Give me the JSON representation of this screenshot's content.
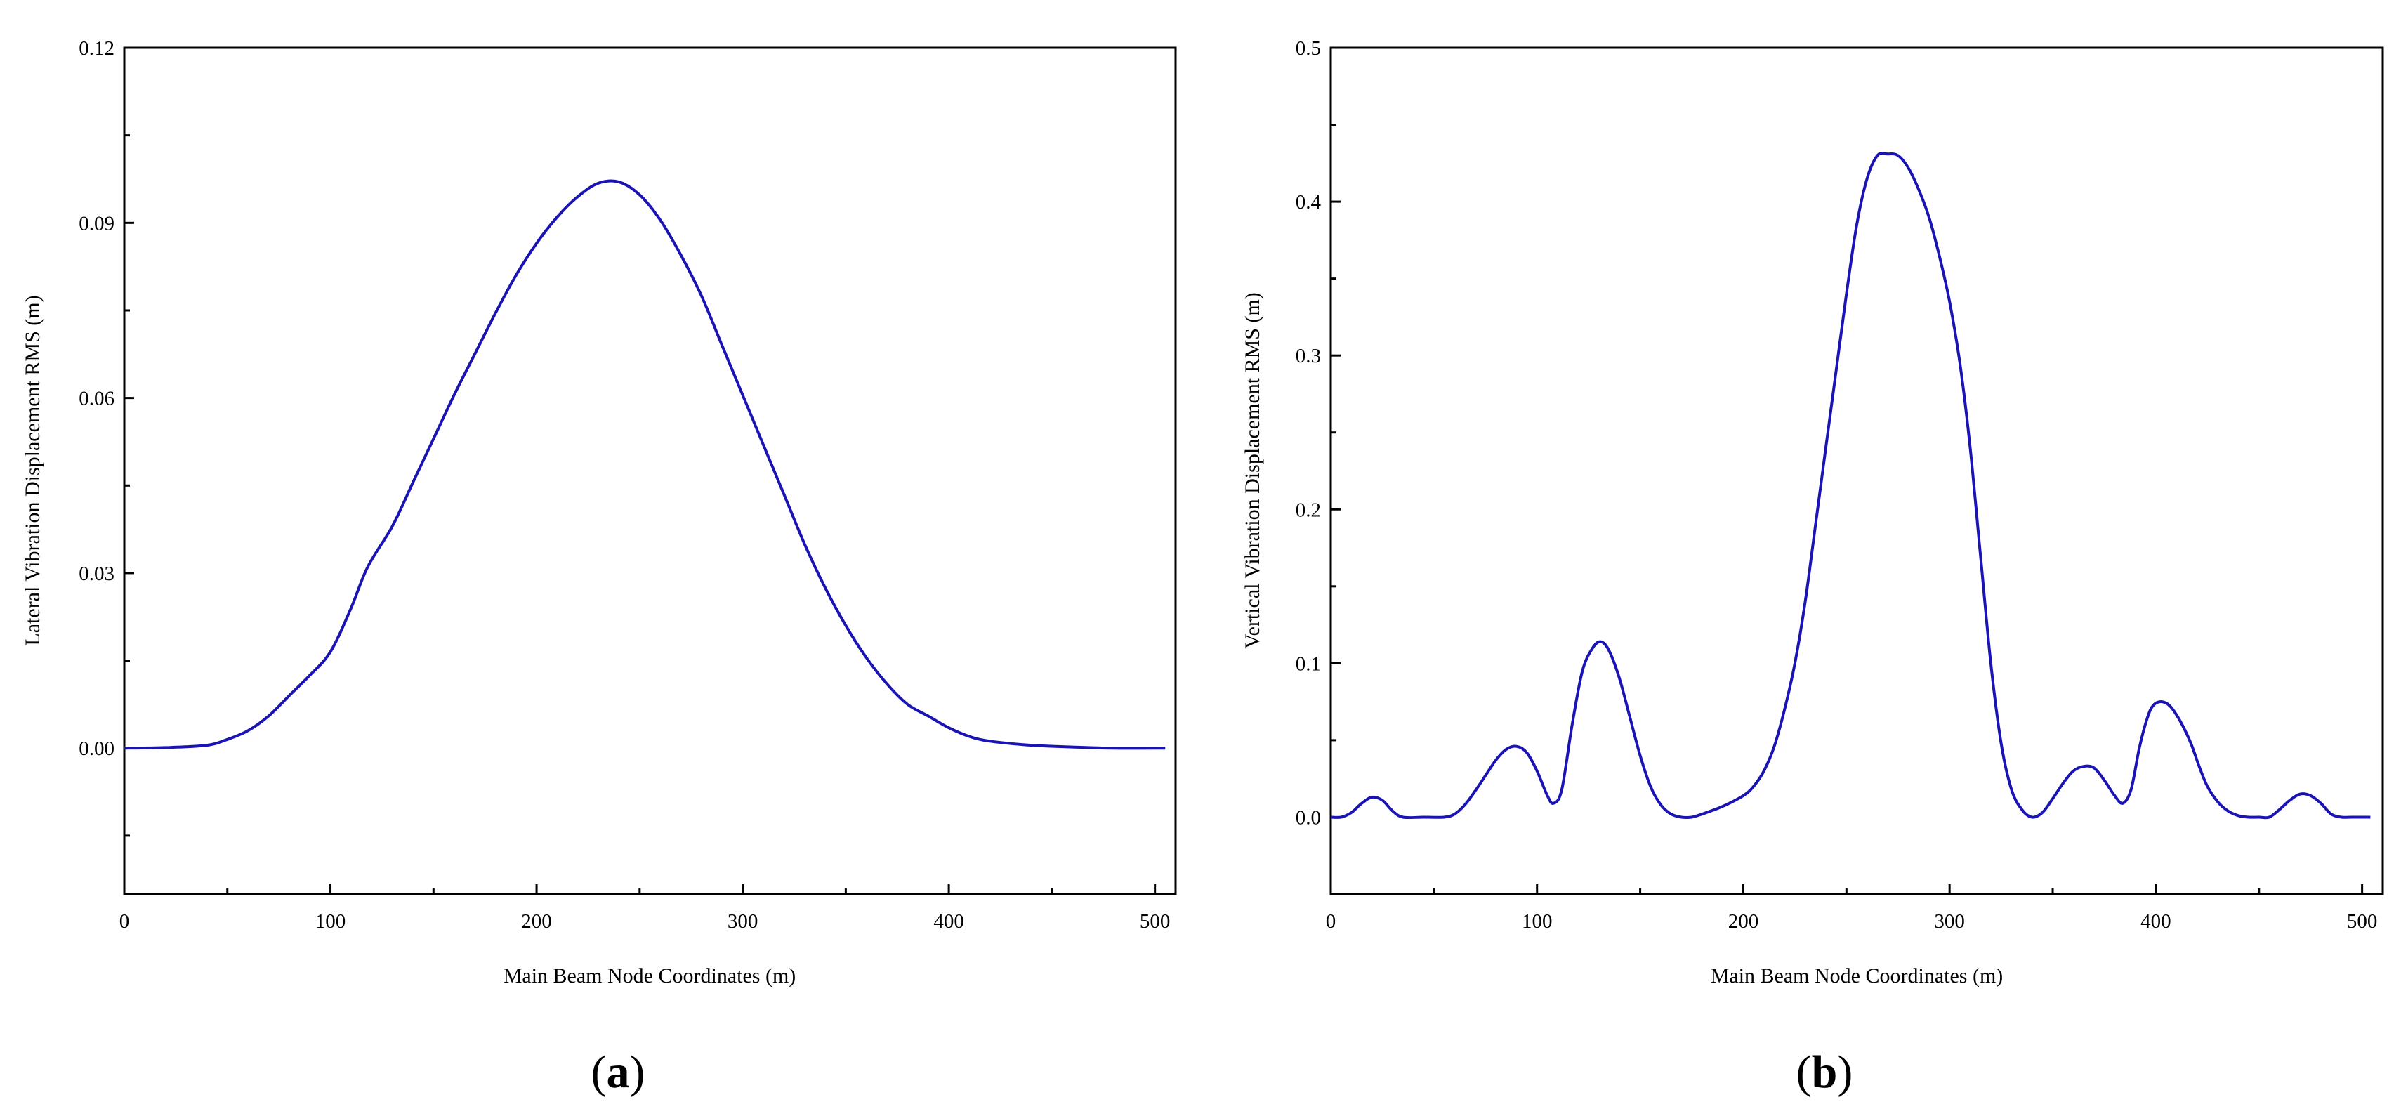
{
  "chart_data": [
    {
      "type": "line",
      "panel_label": {
        "open": "(",
        "letter": "a",
        "close": ")"
      },
      "xlabel": "Main Beam Node Coordinates (m)",
      "ylabel": "Lateral Vibration Displacement RMS (m)",
      "xlim": [
        0,
        510
      ],
      "ylim": [
        -0.025,
        0.12
      ],
      "xticks": [
        0,
        100,
        200,
        300,
        400,
        500
      ],
      "xtick_labels": [
        "0",
        "100",
        "200",
        "300",
        "400",
        "500"
      ],
      "yticks": [
        0.0,
        0.03,
        0.06,
        0.09,
        0.12
      ],
      "ytick_labels": [
        "0.00",
        "0.03",
        "0.06",
        "0.09",
        "0.12"
      ],
      "grid": false,
      "series": [
        {
          "color": "#1a14b4",
          "x": [
            0,
            20,
            40,
            50,
            60,
            70,
            80,
            90,
            100,
            110,
            118,
            130,
            140,
            150,
            160,
            170,
            180,
            190,
            200,
            210,
            220,
            230,
            240,
            250,
            260,
            270,
            280,
            290,
            300,
            310,
            320,
            330,
            340,
            350,
            360,
            370,
            380,
            390,
            400,
            410,
            420,
            440,
            460,
            480,
            505
          ],
          "y": [
            0.0,
            0.0001,
            0.0005,
            0.0015,
            0.003,
            0.0055,
            0.009,
            0.0125,
            0.0165,
            0.024,
            0.031,
            0.038,
            0.0455,
            0.053,
            0.0605,
            0.0675,
            0.0745,
            0.081,
            0.0865,
            0.091,
            0.0945,
            0.0968,
            0.097,
            0.0948,
            0.0905,
            0.0845,
            0.0775,
            0.069,
            0.0605,
            0.052,
            0.0435,
            0.035,
            0.0275,
            0.021,
            0.0155,
            0.011,
            0.0075,
            0.0055,
            0.0035,
            0.002,
            0.0012,
            0.0005,
            0.0002,
            0.0,
            0.0
          ]
        }
      ]
    },
    {
      "type": "line",
      "panel_label": {
        "open": "(",
        "letter": "b",
        "close": ")"
      },
      "xlabel": "Main Beam Node Coordinates (m)",
      "ylabel": "Vertical Vibration Displacement RMS (m)",
      "xlim": [
        0,
        510
      ],
      "ylim": [
        -0.05,
        0.5
      ],
      "xticks": [
        0,
        100,
        200,
        300,
        400,
        500
      ],
      "xtick_labels": [
        "0",
        "100",
        "200",
        "300",
        "400",
        "500"
      ],
      "yticks": [
        0.0,
        0.1,
        0.2,
        0.3,
        0.4,
        0.5
      ],
      "ytick_labels": [
        "0.0",
        "0.1",
        "0.2",
        "0.3",
        "0.4",
        "0.5"
      ],
      "grid": false,
      "series": [
        {
          "color": "#1a14b4",
          "x": [
            0,
            5,
            10,
            15,
            20,
            25,
            30,
            35,
            45,
            55,
            60,
            65,
            70,
            75,
            80,
            85,
            90,
            95,
            100,
            105,
            108,
            112,
            117,
            122,
            127,
            131,
            135,
            140,
            145,
            150,
            155,
            160,
            165,
            170,
            175,
            180,
            190,
            200,
            205,
            210,
            215,
            220,
            225,
            230,
            235,
            240,
            245,
            250,
            255,
            260,
            265,
            270,
            275,
            280,
            285,
            290,
            295,
            300,
            305,
            310,
            315,
            320,
            325,
            330,
            335,
            340,
            345,
            350,
            355,
            360,
            365,
            370,
            375,
            380,
            384,
            388,
            392,
            396,
            399,
            403,
            407,
            412,
            417,
            421,
            425,
            430,
            435,
            440,
            445,
            450,
            455,
            460,
            465,
            470,
            475,
            480,
            485,
            490,
            495,
            500,
            504
          ],
          "y": [
            0.0,
            0.0,
            0.003,
            0.009,
            0.013,
            0.011,
            0.004,
            0.0,
            0.0,
            0.0,
            0.002,
            0.008,
            0.017,
            0.027,
            0.037,
            0.044,
            0.046,
            0.042,
            0.03,
            0.014,
            0.009,
            0.018,
            0.06,
            0.095,
            0.11,
            0.114,
            0.108,
            0.09,
            0.065,
            0.04,
            0.02,
            0.008,
            0.002,
            0.0,
            0.0,
            0.002,
            0.007,
            0.014,
            0.02,
            0.03,
            0.046,
            0.07,
            0.1,
            0.14,
            0.19,
            0.24,
            0.29,
            0.34,
            0.385,
            0.415,
            0.43,
            0.431,
            0.43,
            0.422,
            0.408,
            0.39,
            0.365,
            0.335,
            0.295,
            0.24,
            0.17,
            0.1,
            0.048,
            0.018,
            0.005,
            0.0,
            0.003,
            0.012,
            0.022,
            0.03,
            0.033,
            0.032,
            0.024,
            0.014,
            0.009,
            0.018,
            0.045,
            0.065,
            0.073,
            0.075,
            0.072,
            0.062,
            0.048,
            0.033,
            0.02,
            0.01,
            0.004,
            0.001,
            0.0,
            0.0,
            0.0,
            0.005,
            0.011,
            0.015,
            0.014,
            0.009,
            0.002,
            0.0,
            0.0,
            0.0,
            0.0
          ]
        }
      ]
    }
  ]
}
